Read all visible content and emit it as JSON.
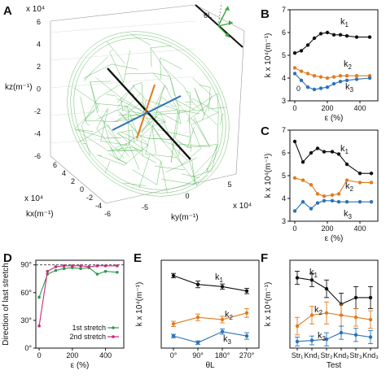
{
  "panels": {
    "A": "A",
    "B": "B",
    "C": "C",
    "D": "D",
    "E": "E",
    "F": "F"
  },
  "panel_a": {
    "ylabel": "kz(m⁻¹)",
    "xlabel": "kx(m⁻¹)",
    "zlabel": "ky(m⁻¹)",
    "exp_top": "x 10⁴",
    "exp_left": "x 10⁴",
    "exp_right": "x 10⁴",
    "kz_ticks": [
      "6",
      "4",
      "2",
      "0",
      "-2",
      "-4",
      "-6"
    ],
    "kx_ticks": [
      "6",
      "4",
      "2",
      "0",
      "-2",
      "-4",
      "-6"
    ],
    "ky_ticks": [
      "-5",
      "0",
      "5"
    ],
    "inset_symbol": "θL",
    "colors": {
      "mesh": "#3aaa3a",
      "axis1": "#111111",
      "axis2": "#e07b20",
      "axis3": "#2a72b8"
    }
  },
  "chart_data": [
    {
      "panel": "B",
      "type": "line",
      "ylabel": "k x 10⁴(m⁻¹)",
      "xlabel": "ε (%)",
      "ylim": [
        3,
        7
      ],
      "xlim": [
        -30,
        510
      ],
      "yticks": [
        3,
        4,
        5,
        6,
        7
      ],
      "xticks": [
        0,
        200,
        400
      ],
      "series": [
        {
          "name": "k1",
          "color": "#111111",
          "x": [
            0,
            40,
            80,
            120,
            160,
            200,
            240,
            280,
            320,
            380,
            460
          ],
          "y": [
            5.1,
            5.2,
            5.45,
            5.75,
            5.95,
            6.0,
            5.9,
            5.9,
            5.85,
            5.8,
            5.8
          ]
        },
        {
          "name": "k2",
          "color": "#e07b20",
          "x": [
            0,
            40,
            80,
            120,
            160,
            200,
            240,
            280,
            320,
            380,
            460
          ],
          "y": [
            4.45,
            4.3,
            4.2,
            4.1,
            4.05,
            4.0,
            4.05,
            4.1,
            4.1,
            4.1,
            4.1
          ]
        },
        {
          "name": "k3",
          "color": "#2a72b8",
          "x": [
            0,
            40,
            80,
            120,
            160,
            200,
            240,
            280,
            320,
            380,
            460
          ],
          "y": [
            4.2,
            3.9,
            3.6,
            3.5,
            3.55,
            3.6,
            3.75,
            3.85,
            3.9,
            3.95,
            4.0
          ]
        }
      ],
      "annotation": "0"
    },
    {
      "panel": "C",
      "type": "line",
      "ylabel": "k x 10⁴(m⁻¹)",
      "xlabel": "ε (%)",
      "ylim": [
        3,
        7
      ],
      "xlim": [
        -30,
        510
      ],
      "yticks": [
        3,
        4,
        5,
        6,
        7
      ],
      "xticks": [
        0,
        200,
        400
      ],
      "series": [
        {
          "name": "k1",
          "color": "#111111",
          "x": [
            0,
            50,
            100,
            140,
            180,
            230,
            270,
            320,
            400,
            470
          ],
          "y": [
            6.5,
            5.6,
            6.0,
            6.2,
            6.05,
            6.05,
            5.95,
            5.5,
            5.1,
            5.1
          ]
        },
        {
          "name": "k2",
          "color": "#e07b20",
          "x": [
            0,
            50,
            100,
            140,
            180,
            230,
            270,
            320,
            400,
            470
          ],
          "y": [
            4.9,
            4.8,
            4.6,
            4.2,
            4.1,
            4.15,
            4.2,
            4.8,
            4.7,
            4.7
          ]
        },
        {
          "name": "k3",
          "color": "#2a72b8",
          "x": [
            0,
            50,
            100,
            140,
            180,
            230,
            270,
            320,
            400,
            470
          ],
          "y": [
            3.45,
            3.85,
            3.55,
            3.8,
            3.9,
            3.9,
            3.85,
            3.85,
            3.85,
            3.85
          ]
        }
      ]
    },
    {
      "panel": "D",
      "type": "line",
      "ylabel": "Direction of last stretch",
      "xlabel": "ε (%)",
      "ylim": [
        0,
        95
      ],
      "xlim": [
        -20,
        510
      ],
      "yticks": [
        0,
        30,
        60,
        90
      ],
      "ytick_labels": [
        "0°",
        "30°",
        "60°",
        "90°"
      ],
      "xticks": [
        0,
        200,
        400
      ],
      "ref_line": 90,
      "series": [
        {
          "name": "1st stretch",
          "color": "#2a9a4a",
          "x": [
            0,
            50,
            100,
            150,
            200,
            250,
            300,
            350,
            400,
            470
          ],
          "y": [
            55,
            80,
            84,
            86,
            87,
            86,
            87,
            80,
            83,
            82
          ]
        },
        {
          "name": "2nd stretch",
          "color": "#c8287a",
          "x": [
            0,
            50,
            100,
            150,
            200,
            250,
            300,
            350,
            400,
            470
          ],
          "y": [
            24,
            83,
            88,
            89,
            89,
            89,
            88,
            89,
            89,
            89
          ]
        }
      ]
    },
    {
      "panel": "E",
      "type": "line",
      "ylabel": "k x 10⁴(m⁻¹)",
      "xlabel": "θL",
      "ylim": [
        3,
        7
      ],
      "categories": [
        "0°",
        "90°",
        "180°",
        "270°"
      ],
      "series": [
        {
          "name": "k1",
          "color": "#111111",
          "y": [
            6.3,
            5.9,
            5.8,
            5.6
          ],
          "err": [
            0.1,
            0.15,
            0.12,
            0.12
          ]
        },
        {
          "name": "k2",
          "color": "#e07b20",
          "y": [
            4.1,
            4.4,
            4.3,
            4.6
          ],
          "err": [
            0.12,
            0.15,
            0.15,
            0.2
          ]
        },
        {
          "name": "k3",
          "color": "#2a72b8",
          "y": [
            3.55,
            3.25,
            3.75,
            3.55
          ],
          "err": [
            0.08,
            0.08,
            0.12,
            0.15
          ]
        }
      ]
    },
    {
      "panel": "F",
      "type": "line",
      "ylabel": "k x 10⁴(m⁻¹)",
      "xlabel": "Test",
      "ylim": [
        3,
        7
      ],
      "categories": [
        "Str₁",
        "Knd₁",
        "Str₂",
        "Knd₂",
        "Str₃",
        "Knd₃"
      ],
      "series": [
        {
          "name": "k1",
          "color": "#111111",
          "y": [
            6.2,
            6.1,
            5.7,
            5.0,
            5.3,
            5.3
          ],
          "err": [
            0.3,
            0.3,
            0.4,
            0.5,
            0.5,
            0.5
          ]
        },
        {
          "name": "k2",
          "color": "#e07b20",
          "y": [
            4.0,
            4.5,
            4.6,
            4.5,
            4.4,
            4.3
          ],
          "err": [
            0.4,
            0.4,
            0.5,
            0.5,
            0.4,
            0.4
          ]
        },
        {
          "name": "k3",
          "color": "#2a72b8",
          "y": [
            3.3,
            3.35,
            3.4,
            3.7,
            3.6,
            3.5
          ],
          "err": [
            0.2,
            0.2,
            0.3,
            0.3,
            0.3,
            0.3
          ]
        }
      ]
    }
  ],
  "series_labels": {
    "k1": "k",
    "k2": "k",
    "k3": "k",
    "s1": "1",
    "s2": "2",
    "s3": "3"
  }
}
